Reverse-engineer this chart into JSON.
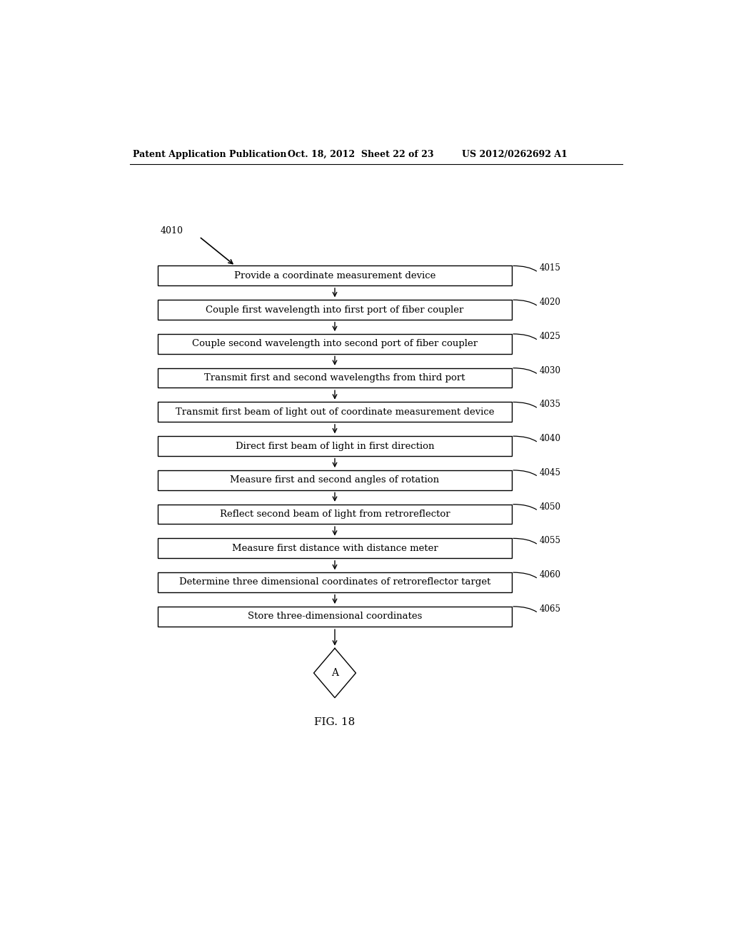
{
  "header_left": "Patent Application Publication",
  "header_mid": "Oct. 18, 2012  Sheet 22 of 23",
  "header_right": "US 2012/0262692 A1",
  "fig_label": "FIG. 18",
  "flow_label": "4010",
  "boxes": [
    {
      "label": "4015",
      "text": "Provide a coordinate measurement device"
    },
    {
      "label": "4020",
      "text": "Couple first wavelength into first port of fiber coupler"
    },
    {
      "label": "4025",
      "text": "Couple second wavelength into second port of fiber coupler"
    },
    {
      "label": "4030",
      "text": "Transmit first and second wavelengths from third port"
    },
    {
      "label": "4035",
      "text": "Transmit first beam of light out of coordinate measurement device"
    },
    {
      "label": "4040",
      "text": "Direct first beam of light in first direction"
    },
    {
      "label": "4045",
      "text": "Measure first and second angles of rotation"
    },
    {
      "label": "4050",
      "text": "Reflect second beam of light from retroreflector"
    },
    {
      "label": "4055",
      "text": "Measure first distance with distance meter"
    },
    {
      "label": "4060",
      "text": "Determine three dimensional coordinates of retroreflector target"
    },
    {
      "label": "4065",
      "text": "Store three-dimensional coordinates"
    }
  ],
  "diamond_text": "A",
  "bg_color": "#ffffff",
  "box_color": "#ffffff",
  "box_edge_color": "#000000",
  "text_color": "#000000",
  "arrow_color": "#000000"
}
